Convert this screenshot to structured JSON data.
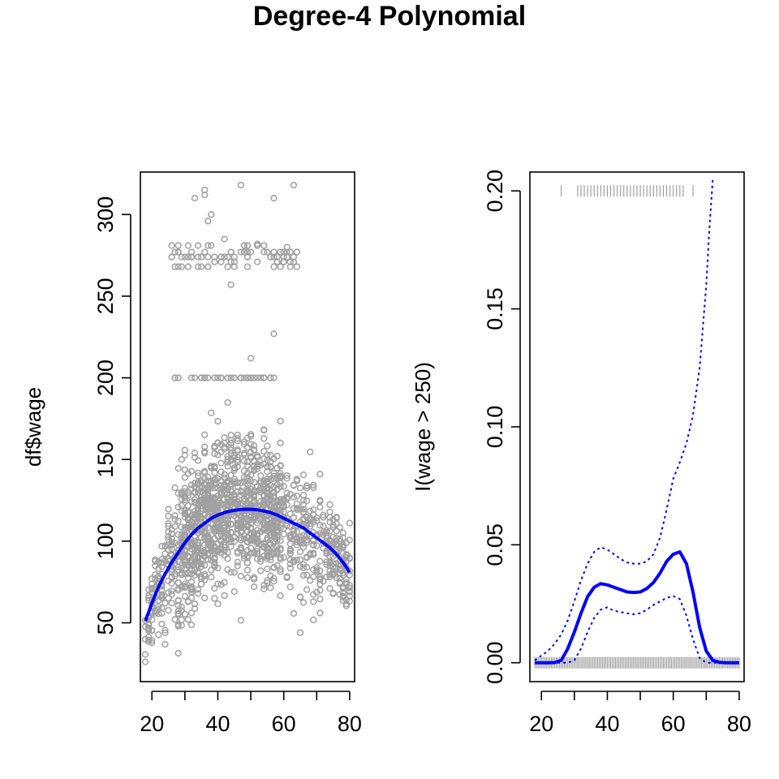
{
  "title": "Degree-4 Polynomial",
  "colors": {
    "points": "#a0a0a0",
    "fit": "#0000ff",
    "rug": "#a0a0a0",
    "frame": "#000000"
  },
  "chart_data": [
    {
      "type": "scatter",
      "title": "",
      "xlabel": "",
      "ylabel": "df$wage",
      "xlim": [
        16.5,
        81.5
      ],
      "ylim": [
        14,
        326
      ],
      "xticks": [
        20,
        30,
        40,
        50,
        60,
        70,
        80
      ],
      "xtick_labels": [
        "20",
        "",
        "40",
        "",
        "60",
        "",
        "80"
      ],
      "yticks": [
        50,
        100,
        150,
        200,
        250,
        300
      ],
      "ytick_labels": [
        "50",
        "100",
        "150",
        "200",
        "250",
        "300"
      ],
      "points_style": "open-circle",
      "fit": {
        "name": "",
        "x": [
          18,
          20,
          22,
          24,
          26,
          28,
          30,
          32,
          34,
          36,
          38,
          40,
          42,
          44,
          46,
          48,
          50,
          52,
          54,
          56,
          58,
          60,
          62,
          64,
          66,
          68,
          70,
          72,
          74,
          76,
          78,
          80
        ],
        "y": [
          51,
          62,
          72,
          80,
          87,
          93,
          99,
          104,
          108,
          111,
          114,
          116,
          117.5,
          118.5,
          119.2,
          119.5,
          119.5,
          119.2,
          118.5,
          117.5,
          116,
          114,
          112,
          110,
          108,
          105,
          102,
          99,
          96,
          92,
          87,
          81
        ]
      },
      "band_high": {
        "x_range": [
          26,
          66
        ],
        "y_values": [
          268,
          271,
          274,
          277,
          281
        ]
      },
      "outliers": [
        [
          33,
          310
        ],
        [
          36,
          315
        ],
        [
          36,
          312
        ],
        [
          38,
          300
        ],
        [
          37,
          296
        ],
        [
          47,
          318
        ],
        [
          57,
          310
        ],
        [
          63,
          318
        ],
        [
          57,
          227
        ],
        [
          50,
          212
        ],
        [
          44,
          257
        ],
        [
          42,
          285
        ],
        [
          52,
          282
        ],
        [
          61,
          280
        ]
      ]
    },
    {
      "type": "line",
      "title": "",
      "xlabel": "",
      "ylabel": "I(wage > 250)",
      "xlim": [
        16.5,
        81.5
      ],
      "ylim": [
        -0.008,
        0.208
      ],
      "xticks": [
        20,
        30,
        40,
        50,
        60,
        70,
        80
      ],
      "xtick_labels": [
        "20",
        "",
        "40",
        "",
        "60",
        "",
        "80"
      ],
      "yticks": [
        0.0,
        0.05,
        0.1,
        0.15,
        0.2
      ],
      "ytick_labels": [
        "0.00",
        "0.05",
        "0.10",
        "0.15",
        "0.20"
      ],
      "series": [
        {
          "name": "",
          "style": "solid",
          "x": [
            18,
            20,
            22,
            24,
            26,
            28,
            30,
            32,
            34,
            36,
            38,
            40,
            42,
            44,
            46,
            48,
            50,
            52,
            54,
            56,
            58,
            60,
            62,
            64,
            66,
            68,
            70,
            72,
            74,
            76,
            78,
            80
          ],
          "y": [
            0.0,
            0.0,
            0.0,
            0.0001,
            0.001,
            0.006,
            0.013,
            0.021,
            0.028,
            0.032,
            0.0335,
            0.033,
            0.032,
            0.031,
            0.03,
            0.0298,
            0.03,
            0.0315,
            0.034,
            0.038,
            0.043,
            0.046,
            0.047,
            0.042,
            0.03,
            0.015,
            0.005,
            0.001,
            0.0002,
            0.0,
            0.0,
            0.0
          ]
        },
        {
          "name": "",
          "style": "dotted",
          "x": [
            18,
            20,
            22,
            24,
            26,
            28,
            30,
            32,
            34,
            36,
            38,
            40,
            42,
            44,
            46,
            48,
            50,
            52,
            54,
            56,
            58,
            60,
            62,
            64,
            66,
            68,
            70,
            71,
            72
          ],
          "y": [
            0.001,
            0.003,
            0.005,
            0.008,
            0.012,
            0.018,
            0.026,
            0.035,
            0.042,
            0.047,
            0.049,
            0.048,
            0.046,
            0.044,
            0.0425,
            0.042,
            0.042,
            0.043,
            0.046,
            0.053,
            0.065,
            0.078,
            0.085,
            0.093,
            0.105,
            0.125,
            0.16,
            0.185,
            0.205
          ]
        },
        {
          "name": "",
          "style": "dotted",
          "x": [
            18,
            20,
            22,
            24,
            26,
            28,
            30,
            32,
            34,
            36,
            38,
            40,
            42,
            44,
            46,
            48,
            50,
            52,
            54,
            56,
            58,
            60,
            62,
            64,
            66,
            68,
            70,
            72,
            74,
            76,
            78,
            80
          ],
          "y": [
            0.0,
            0.0,
            0.0,
            0.0,
            0.0,
            0.0,
            0.001,
            0.006,
            0.013,
            0.019,
            0.0225,
            0.0235,
            0.022,
            0.0215,
            0.021,
            0.0205,
            0.021,
            0.0225,
            0.0245,
            0.026,
            0.0275,
            0.0283,
            0.027,
            0.02,
            0.01,
            0.002,
            0.0,
            0.0,
            0.0,
            0.0,
            0.0,
            0.0
          ]
        }
      ],
      "rug_top": {
        "y": 0.2,
        "x_values": [
          26,
          31,
          32,
          33,
          34,
          35,
          36,
          37,
          38,
          39,
          40,
          41,
          42,
          43,
          44,
          45,
          46,
          47,
          48,
          49,
          50,
          51,
          52,
          53,
          54,
          55,
          56,
          57,
          58,
          59,
          60,
          61,
          62,
          63,
          66
        ]
      },
      "rug_bottom": {
        "y": 0.0,
        "x_range": [
          18,
          80
        ]
      }
    }
  ]
}
